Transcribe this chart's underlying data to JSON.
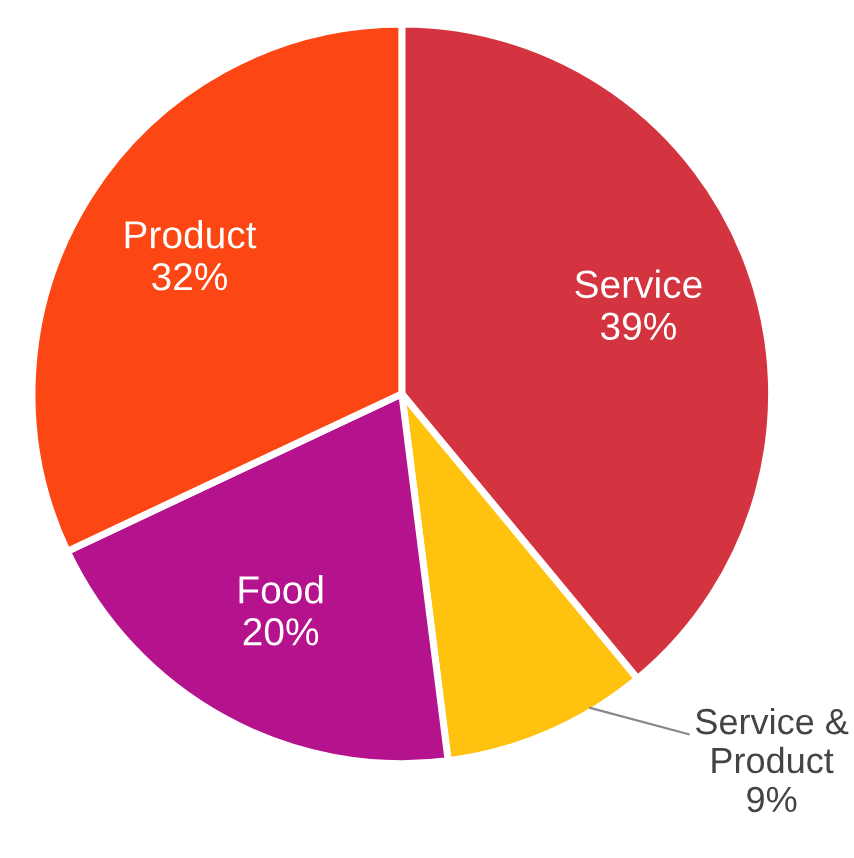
{
  "chart_data": {
    "type": "pie",
    "categories": [
      "Service",
      "Service &\nProduct",
      "Food",
      "Product"
    ],
    "values": [
      39,
      9,
      20,
      32
    ],
    "value_labels": [
      "39%",
      "9%",
      "20%",
      "32%"
    ],
    "colors": [
      "#d4343f",
      "#ffc20e",
      "#b5138e",
      "#fc4614"
    ],
    "legend": false
  }
}
